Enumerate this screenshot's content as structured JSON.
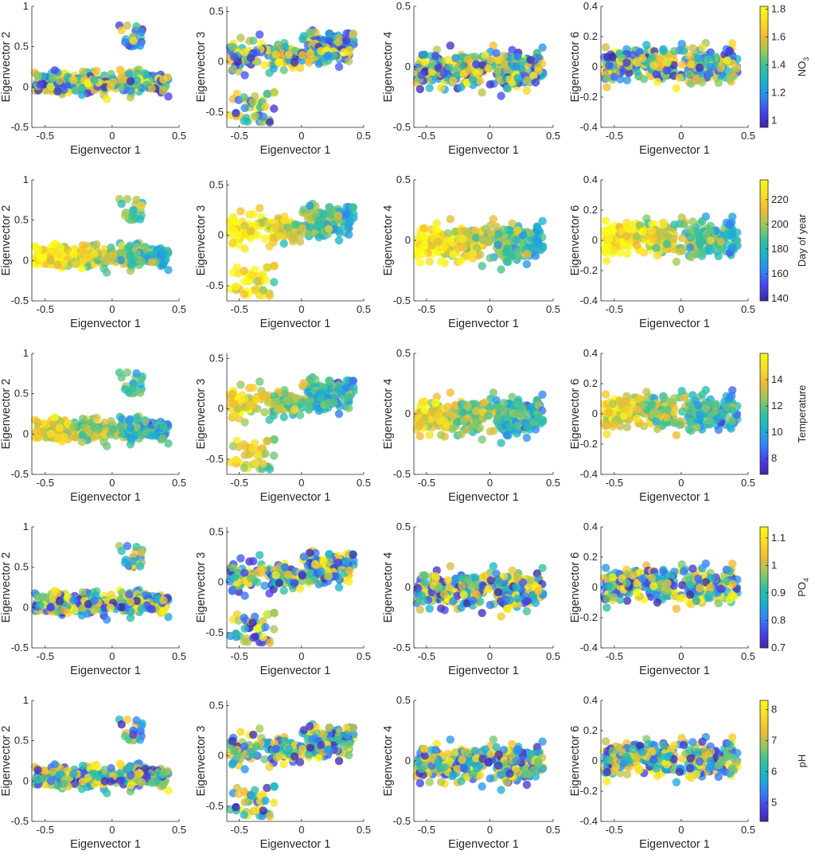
{
  "figure": {
    "point_count_per_panel": 300
  },
  "chart_data": {
    "type": "scatter",
    "title": "",
    "x_axis": {
      "label": "Eigenvector 1",
      "lim": [
        -0.6,
        0.5
      ],
      "ticks": [
        -0.5,
        0,
        0.5
      ],
      "tick_labels": [
        "-0.5",
        "0",
        "0.5"
      ]
    },
    "panel_columns": [
      {
        "ylabel": "Eigenvector 2",
        "ylim": [
          -0.5,
          1.0
        ],
        "yticks": [
          -0.5,
          0,
          0.5,
          1
        ],
        "ytick_labels": [
          "-0.5",
          "0",
          "0.5",
          "1"
        ]
      },
      {
        "ylabel": "Eigenvector 3",
        "ylim": [
          -0.65,
          0.55
        ],
        "yticks": [
          -0.5,
          0,
          0.5
        ],
        "ytick_labels": [
          "-0.5",
          "0",
          "0.5"
        ]
      },
      {
        "ylabel": "Eigenvector 4",
        "ylim": [
          -0.5,
          0.5
        ],
        "yticks": [
          -0.5,
          0,
          0.5
        ],
        "ytick_labels": [
          "-0.5",
          "0",
          "0.5"
        ]
      },
      {
        "ylabel": "Eigenvector 6",
        "ylim": [
          -0.4,
          0.4
        ],
        "yticks": [
          -0.4,
          -0.2,
          0,
          0.2,
          0.4
        ],
        "ytick_labels": [
          "-0.4",
          "-0.2",
          "0",
          "0.2",
          "0.4"
        ]
      }
    ],
    "panel_rows": [
      {
        "colorbar_label": "NO",
        "colorbar_label_sub": "3",
        "clim": [
          0.95,
          1.82
        ],
        "ticks": [
          1,
          1.2,
          1.4,
          1.6,
          1.8
        ],
        "tick_labels": [
          "1",
          "1.2",
          "1.4",
          "1.6",
          "1.8"
        ]
      },
      {
        "colorbar_label": "Day of year",
        "colorbar_label_sub": "",
        "clim": [
          138,
          236
        ],
        "ticks": [
          140,
          160,
          180,
          200,
          220
        ],
        "tick_labels": [
          "140",
          "160",
          "180",
          "200",
          "220"
        ]
      },
      {
        "colorbar_label": "Temperature",
        "colorbar_label_sub": "",
        "clim": [
          6.8,
          16
        ],
        "ticks": [
          8,
          10,
          12,
          14
        ],
        "tick_labels": [
          "8",
          "10",
          "12",
          "14"
        ]
      },
      {
        "colorbar_label": "PO",
        "colorbar_label_sub": "4",
        "clim": [
          0.7,
          1.14
        ],
        "ticks": [
          0.7,
          0.8,
          0.9,
          1,
          1.1
        ],
        "tick_labels": [
          "0.7",
          "0.8",
          "0.9",
          "1",
          "1.1"
        ]
      },
      {
        "colorbar_label": "pH",
        "colorbar_label_sub": "",
        "clim": [
          4.4,
          8.3
        ],
        "ticks": [
          5,
          6,
          7,
          8
        ],
        "tick_labels": [
          "5",
          "6",
          "7",
          "8"
        ]
      }
    ],
    "colormap": "parula",
    "colormap_stops": [
      "#3e26a8",
      "#4643ee",
      "#2e87f7",
      "#18b3d0",
      "#33c19b",
      "#97ca5a",
      "#f3b932",
      "#f8de24",
      "#f9fb15"
    ],
    "marker_color_alpha": 0.78,
    "axis_color": "#262626",
    "legend": "colorbar right of each row"
  }
}
